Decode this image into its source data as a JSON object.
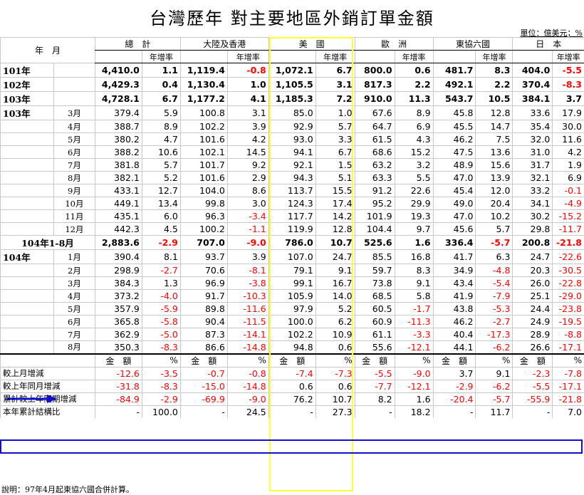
{
  "title": "台灣歷年 對主要地區外銷訂單金額",
  "unit": "單位：億美元；%",
  "header": {
    "period": "年　月",
    "regions": [
      "總　計",
      "大陸及香港",
      "美　國",
      "歐　洲",
      "東協六國",
      "日　本"
    ],
    "growth": "年增率"
  },
  "rows": [
    {
      "yr": "101年",
      "mo": "",
      "bold": true,
      "v": [
        "4,410.0",
        "1.1",
        "1,119.4",
        "-0.8",
        "1,072.1",
        "6.7",
        "800.0",
        "0.6",
        "481.7",
        "8.3",
        "404.0",
        "-5.5"
      ]
    },
    {
      "yr": "102年",
      "mo": "",
      "bold": true,
      "v": [
        "4,429.3",
        "0.4",
        "1,130.4",
        "1.0",
        "1,105.5",
        "3.1",
        "817.3",
        "2.2",
        "492.1",
        "2.2",
        "370.4",
        "-8.3"
      ]
    },
    {
      "yr": "103年",
      "mo": "",
      "bold": true,
      "v": [
        "4,728.1",
        "6.7",
        "1,177.2",
        "4.1",
        "1,185.3",
        "7.2",
        "910.0",
        "11.3",
        "543.7",
        "10.5",
        "384.1",
        "3.7"
      ]
    },
    {
      "yr": "103年",
      "mo": "3月",
      "bold": false,
      "v": [
        "379.4",
        "5.9",
        "100.8",
        "3.1",
        "85.0",
        "1.0",
        "67.6",
        "8.9",
        "45.8",
        "12.8",
        "33.6",
        "17.9"
      ]
    },
    {
      "yr": "",
      "mo": "4月",
      "bold": false,
      "v": [
        "388.7",
        "8.9",
        "102.2",
        "3.9",
        "92.9",
        "5.7",
        "64.7",
        "6.9",
        "45.5",
        "14.7",
        "35.4",
        "30.0"
      ]
    },
    {
      "yr": "",
      "mo": "5月",
      "bold": false,
      "v": [
        "380.2",
        "4.7",
        "101.6",
        "4.2",
        "93.0",
        "3.3",
        "61.5",
        "4.3",
        "46.2",
        "7.5",
        "32.0",
        "11.6"
      ]
    },
    {
      "yr": "",
      "mo": "6月",
      "bold": false,
      "v": [
        "388.2",
        "10.6",
        "102.1",
        "14.5",
        "94.1",
        "6.7",
        "68.6",
        "15.2",
        "47.5",
        "13.6",
        "31.0",
        "4.2"
      ]
    },
    {
      "yr": "",
      "mo": "7月",
      "bold": false,
      "v": [
        "381.8",
        "5.7",
        "101.7",
        "9.2",
        "92.1",
        "1.5",
        "63.2",
        "3.2",
        "48.9",
        "15.6",
        "31.7",
        "1.9"
      ]
    },
    {
      "yr": "",
      "mo": "8月",
      "bold": false,
      "v": [
        "382.1",
        "5.2",
        "101.6",
        "2.9",
        "94.3",
        "5.1",
        "63.3",
        "5.5",
        "47.0",
        "13.9",
        "32.1",
        "6.9"
      ]
    },
    {
      "yr": "",
      "mo": "9月",
      "bold": false,
      "v": [
        "433.1",
        "12.7",
        "104.0",
        "8.6",
        "113.7",
        "15.5",
        "91.2",
        "22.6",
        "45.4",
        "12.0",
        "33.2",
        "-0.1"
      ]
    },
    {
      "yr": "",
      "mo": "10月",
      "bold": false,
      "v": [
        "449.1",
        "13.4",
        "99.8",
        "3.0",
        "124.3",
        "17.4",
        "95.2",
        "29.9",
        "49.0",
        "20.4",
        "34.1",
        "-4.9"
      ]
    },
    {
      "yr": "",
      "mo": "11月",
      "bold": false,
      "v": [
        "435.1",
        "6.0",
        "96.3",
        "-3.4",
        "117.7",
        "14.2",
        "101.9",
        "19.3",
        "47.0",
        "10.2",
        "30.2",
        "-15.2"
      ]
    },
    {
      "yr": "",
      "mo": "12月",
      "bold": false,
      "v": [
        "442.3",
        "4.5",
        "100.2",
        "-1.1",
        "119.9",
        "12.8",
        "104.4",
        "9.7",
        "45.6",
        "5.7",
        "29.8",
        "-11.7"
      ]
    },
    {
      "yr": "104年1-8月",
      "mo": "",
      "bold": true,
      "center": true,
      "v": [
        "2,883.6",
        "-2.9",
        "707.0",
        "-9.0",
        "786.0",
        "10.7",
        "525.6",
        "1.6",
        "336.4",
        "-5.7",
        "200.8",
        "-21.8"
      ]
    },
    {
      "yr": "104年",
      "mo": "1月",
      "bold": false,
      "v": [
        "390.4",
        "8.1",
        "93.7",
        "3.9",
        "107.0",
        "24.7",
        "85.5",
        "16.8",
        "41.7",
        "6.3",
        "24.7",
        "-22.6"
      ]
    },
    {
      "yr": "",
      "mo": "2月",
      "bold": false,
      "v": [
        "298.9",
        "-2.7",
        "70.6",
        "-8.1",
        "79.1",
        "9.1",
        "59.7",
        "8.3",
        "34.9",
        "-4.8",
        "20.3",
        "-30.5"
      ]
    },
    {
      "yr": "",
      "mo": "3月",
      "bold": false,
      "v": [
        "384.3",
        "1.3",
        "96.9",
        "-3.8",
        "99.1",
        "16.7",
        "73.8",
        "9.1",
        "43.4",
        "-5.4",
        "26.0",
        "-22.8"
      ]
    },
    {
      "yr": "",
      "mo": "4月",
      "bold": false,
      "v": [
        "373.2",
        "-4.0",
        "91.7",
        "-10.3",
        "105.9",
        "14.0",
        "68.5",
        "5.8",
        "41.9",
        "-7.9",
        "25.1",
        "-29.0"
      ]
    },
    {
      "yr": "",
      "mo": "5月",
      "bold": false,
      "v": [
        "357.9",
        "-5.9",
        "89.8",
        "-11.6",
        "97.9",
        "5.2",
        "60.5",
        "-1.7",
        "43.8",
        "-5.3",
        "24.4",
        "-23.8"
      ]
    },
    {
      "yr": "",
      "mo": "6月",
      "bold": false,
      "v": [
        "365.8",
        "-5.8",
        "90.4",
        "-11.5",
        "100.0",
        "6.2",
        "60.9",
        "-11.3",
        "46.2",
        "-2.7",
        "24.9",
        "-19.5"
      ]
    },
    {
      "yr": "",
      "mo": "7月",
      "bold": false,
      "v": [
        "362.9",
        "-5.0",
        "87.3",
        "-14.1",
        "102.2",
        "10.9",
        "61.1",
        "-3.3",
        "40.4",
        "-17.3",
        "28.9",
        "-8.8"
      ]
    },
    {
      "yr": "",
      "mo": "8月",
      "bold": false,
      "v": [
        "350.3",
        "-8.3",
        "86.6",
        "-14.8",
        "94.8",
        "0.6",
        "55.6",
        "-12.1",
        "44.1",
        "-6.2",
        "26.6",
        "-17.1"
      ]
    }
  ],
  "subheader": {
    "amount": "金　額",
    "pct": "%"
  },
  "summary": [
    {
      "label": "較上月增減",
      "v": [
        "-12.6",
        "-3.5",
        "-0.7",
        "-0.8",
        "-7.4",
        "-7.3",
        "-5.5",
        "-9.0",
        "3.7",
        "9.1",
        "-2.3",
        "-7.8"
      ]
    },
    {
      "label": "較上年同月增減",
      "v": [
        "-31.8",
        "-8.3",
        "-15.0",
        "-14.8",
        "0.6",
        "0.6",
        "-7.7",
        "-12.1",
        "-2.9",
        "-6.2",
        "-5.5",
        "-17.1"
      ]
    },
    {
      "label": "累計較上年同期增減",
      "v": [
        "-84.9",
        "-2.9",
        "-69.9",
        "-9.0",
        "76.2",
        "10.7",
        "8.2",
        "1.6",
        "-20.4",
        "-5.7",
        "-55.9",
        "-21.8"
      ]
    },
    {
      "label": "本年累計結構比",
      "v": [
        "-",
        "100.0",
        "-",
        "24.5",
        "-",
        "27.3",
        "-",
        "18.2",
        "-",
        "11.7",
        "-",
        "7.0"
      ]
    }
  ],
  "note": "說明：97年4月起東協六國合併計算。",
  "colors": {
    "negative": "#ff0000",
    "us_highlight": "#ffff33",
    "yoy_highlight": "#1010cc",
    "arrow": "#1010cc"
  }
}
